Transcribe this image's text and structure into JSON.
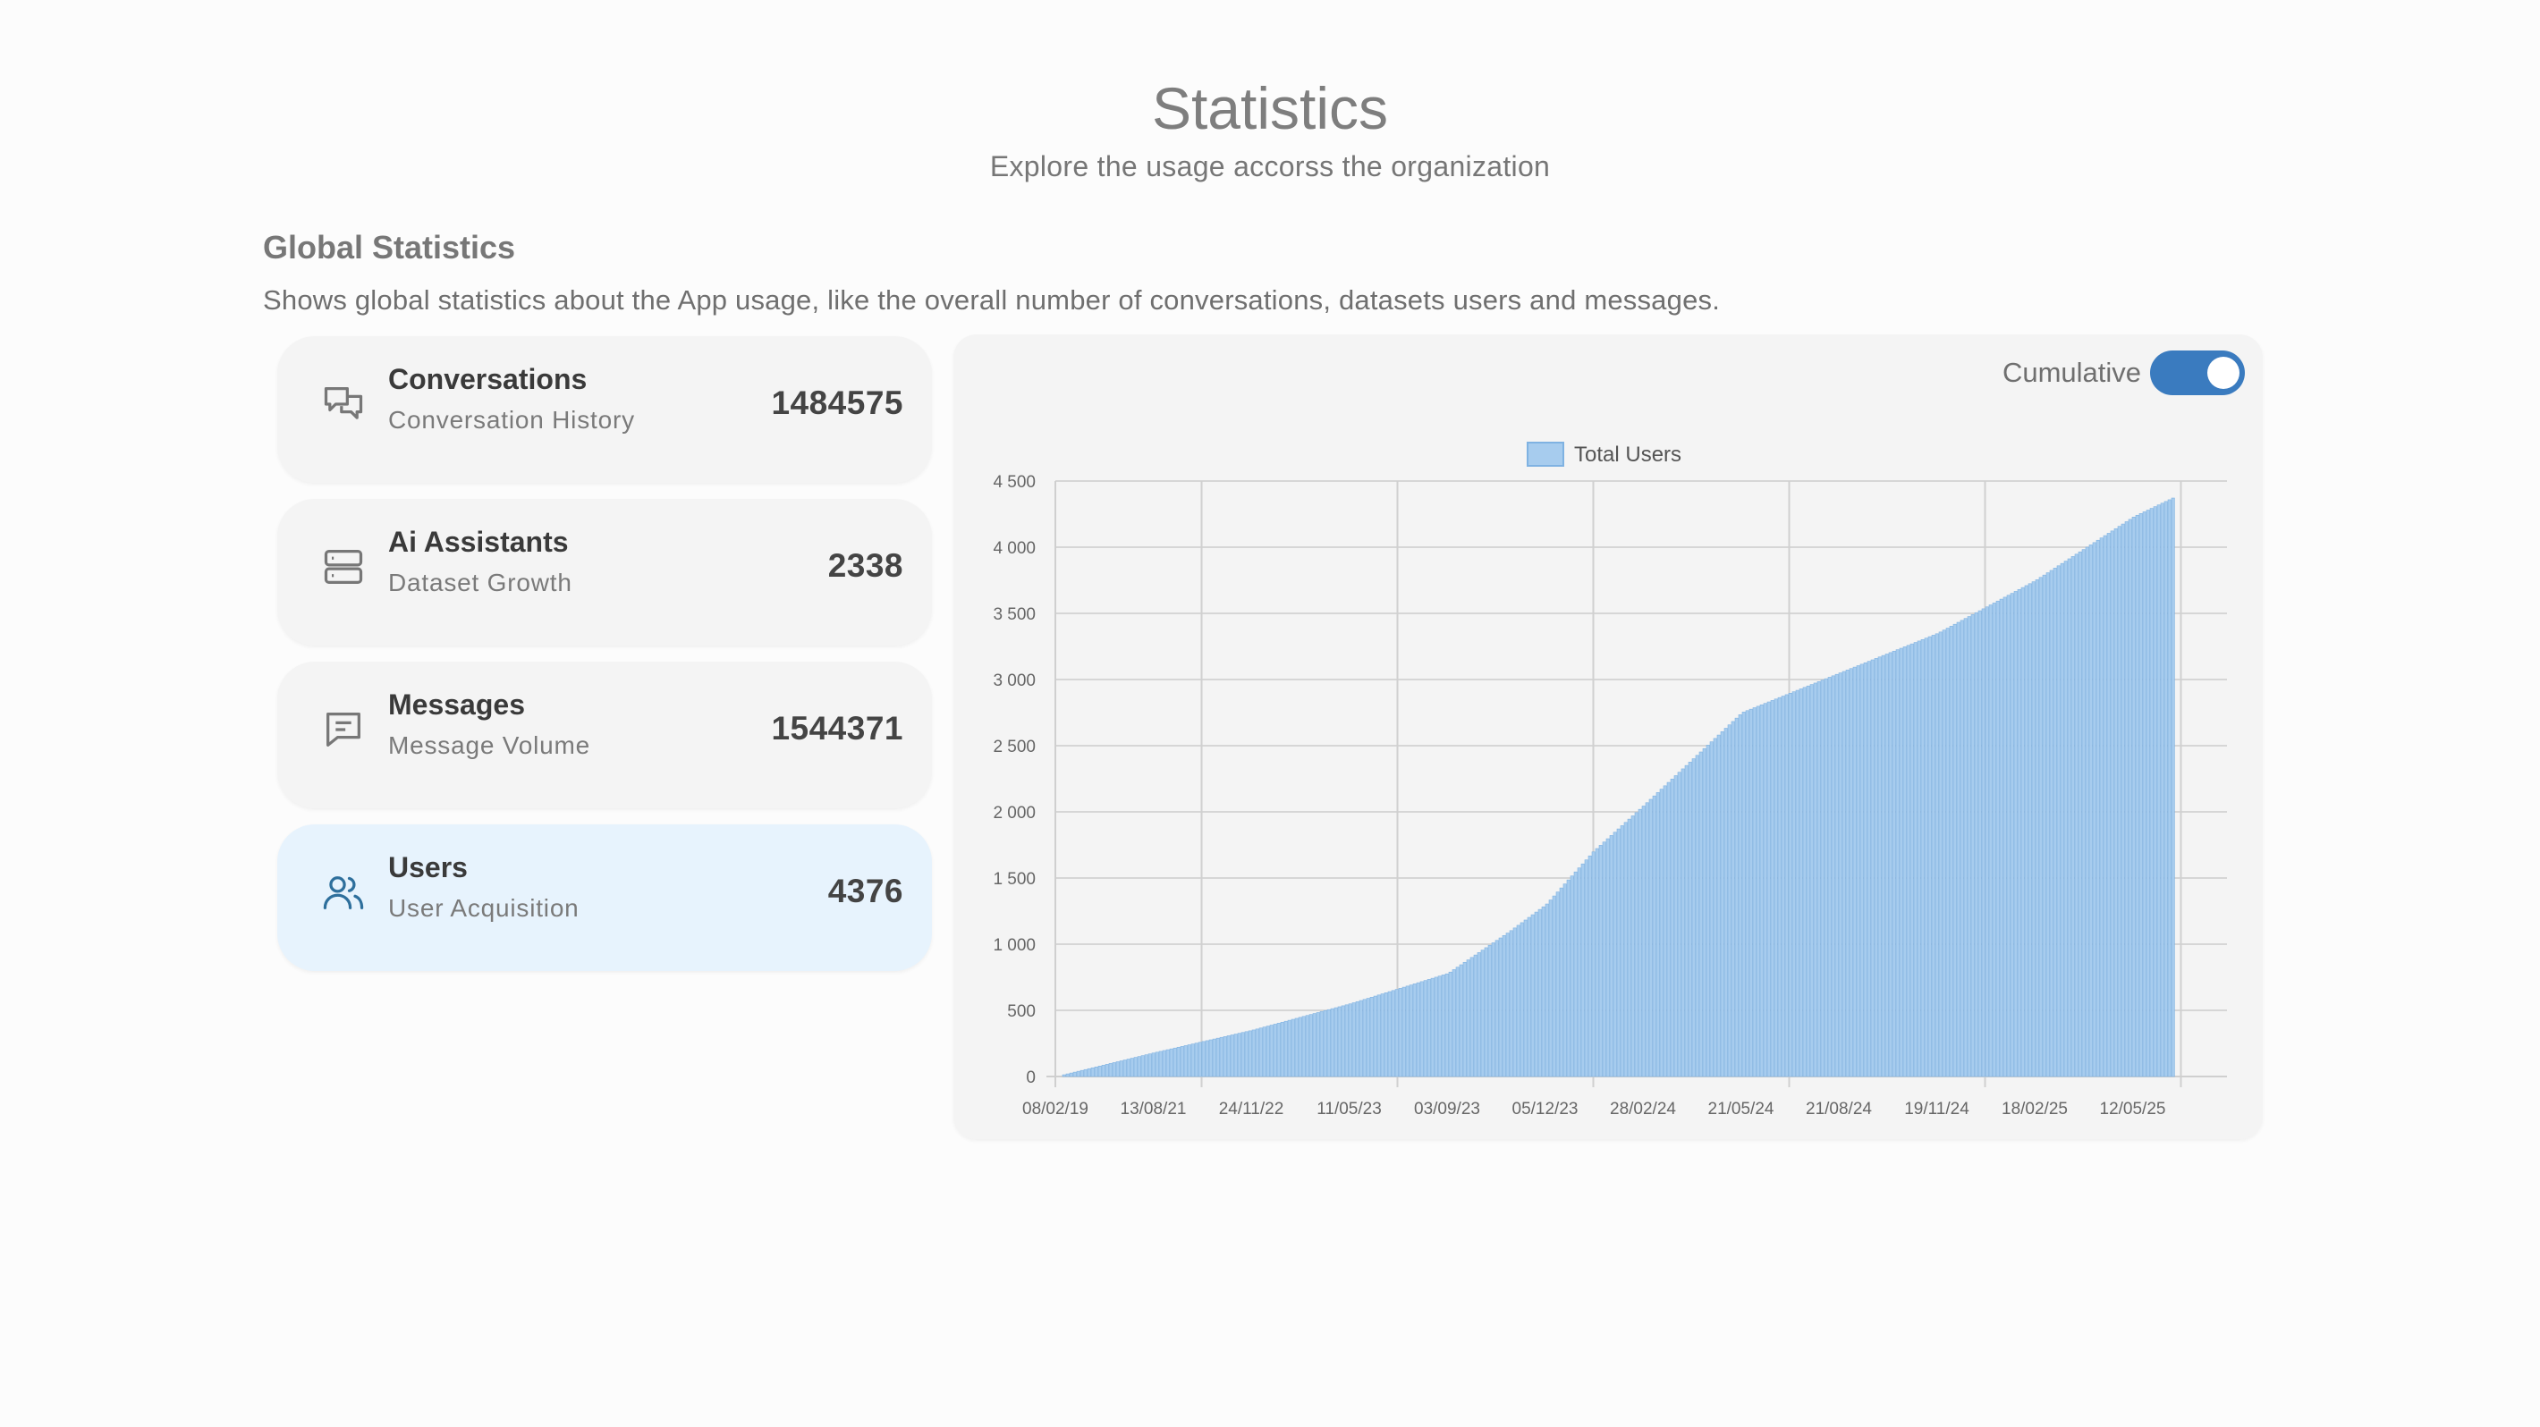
{
  "header": {
    "title": "Statistics",
    "subtitle": "Explore the usage accorss the organization"
  },
  "section": {
    "title": "Global Statistics",
    "description": "Shows global statistics about the App usage, like the overall number of conversations, datasets users and messages."
  },
  "cards": [
    {
      "name": "Conversations",
      "sub": "Conversation History",
      "count": "1484575",
      "icon": "chat-bubbles-icon",
      "active": false
    },
    {
      "name": "Ai Assistants",
      "sub": "Dataset Growth",
      "count": "2338",
      "icon": "server-icon",
      "active": false
    },
    {
      "name": "Messages",
      "sub": "Message Volume",
      "count": "1544371",
      "icon": "message-icon",
      "active": false
    },
    {
      "name": "Users",
      "sub": "User Acquisition",
      "count": "4376",
      "icon": "users-icon",
      "active": true
    }
  ],
  "toggle": {
    "label": "Cumulative",
    "on": true
  },
  "colors": {
    "accent": "#3a7bbf",
    "bar_fill": "#a7ccee",
    "bar_stroke": "#7fb2e2",
    "active_card": "#e7f3fd"
  },
  "chart_data": {
    "type": "bar",
    "legend": "Total Users",
    "legend_position": "top-center",
    "grid": true,
    "ylim": [
      0,
      4500
    ],
    "yticks": [
      "0",
      "500",
      "1 000",
      "1 500",
      "2 000",
      "2 500",
      "3 000",
      "3 500",
      "4 000",
      "4 500"
    ],
    "xticks": [
      "08/02/19",
      "13/08/21",
      "24/11/22",
      "11/05/23",
      "03/09/23",
      "05/12/23",
      "28/02/24",
      "21/05/24",
      "21/08/24",
      "19/11/24",
      "18/02/25",
      "12/05/25"
    ],
    "series": [
      {
        "name": "Total Users",
        "points": [
          [
            "08/02/19",
            0
          ],
          [
            "13/08/21",
            180
          ],
          [
            "24/11/22",
            350
          ],
          [
            "11/05/23",
            550
          ],
          [
            "03/09/23",
            780
          ],
          [
            "01/11/23",
            1100
          ],
          [
            "05/12/23",
            1300
          ],
          [
            "15/01/24",
            1700
          ],
          [
            "28/02/24",
            2050
          ],
          [
            "21/05/24",
            2750
          ],
          [
            "21/08/24",
            3050
          ],
          [
            "19/11/24",
            3350
          ],
          [
            "18/02/25",
            3750
          ],
          [
            "12/05/25",
            4230
          ],
          [
            "15/06/25",
            4376
          ]
        ]
      }
    ]
  }
}
